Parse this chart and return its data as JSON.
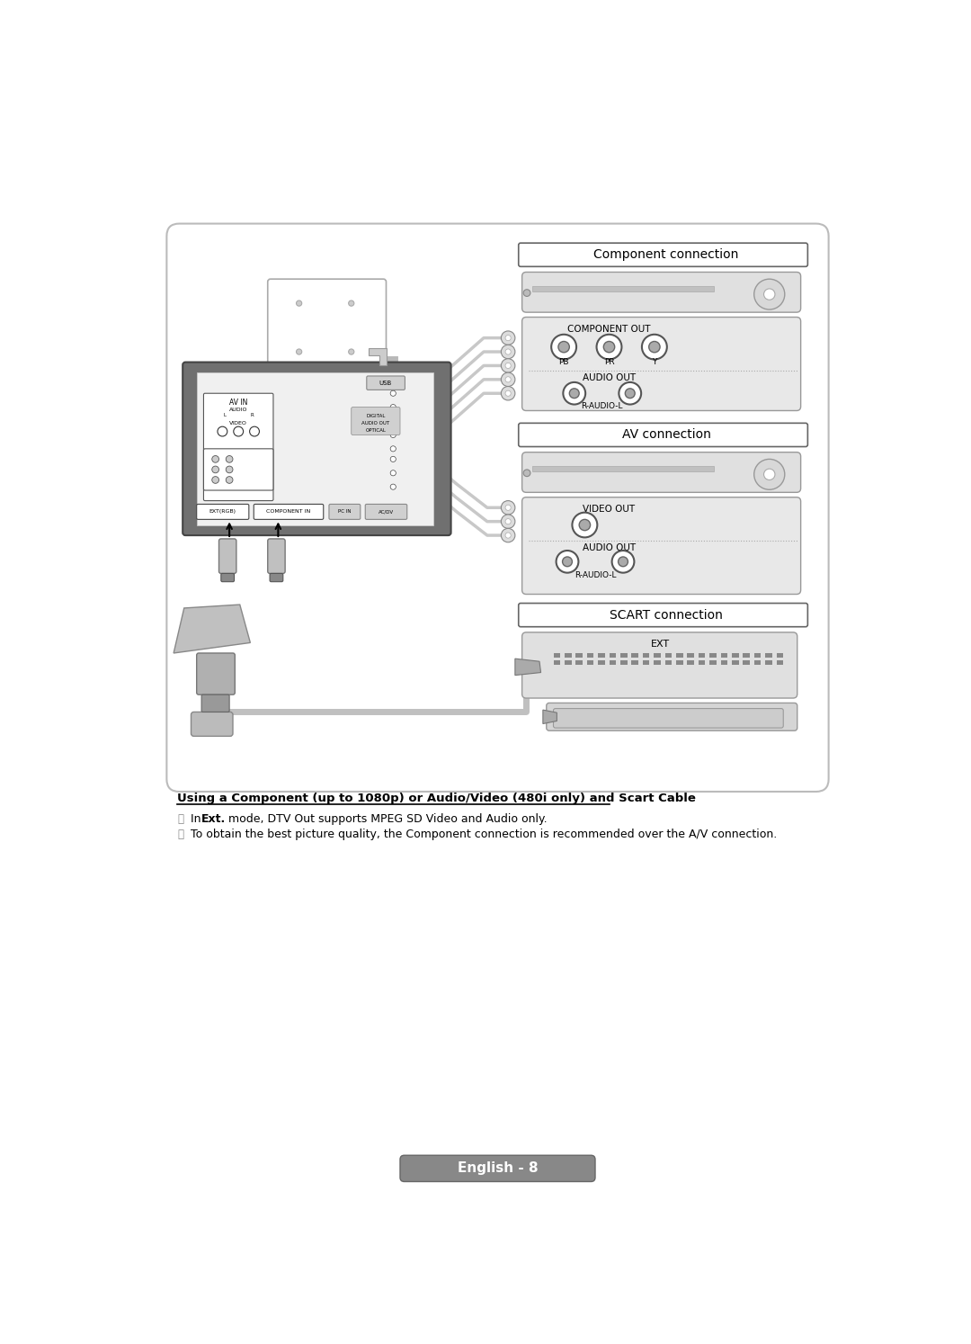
{
  "bg_color": "#ffffff",
  "section_title_component": "Component connection",
  "section_title_av": "AV connection",
  "section_title_scart": "SCART connection",
  "label_component_out": "COMPONENT OUT",
  "label_audio_out_1": "AUDIO OUT",
  "label_r_audio_l_1": "R-AUDIO-L",
  "label_pb": "PB",
  "label_pr": "PR",
  "label_y": "Y",
  "label_video_out": "VIDEO OUT",
  "label_audio_out_2": "AUDIO OUT",
  "label_r_audio_l_2": "R-AUDIO-L",
  "label_ext": "EXT",
  "heading": "Using a Component (up to 1080p) or Audio/Video (480i only) and Scart Cable",
  "note1_plain1": "In ",
  "note1_bold": "Ext.",
  "note1_plain2": " mode, DTV Out supports MPEG SD Video and Audio only.",
  "note2": "To obtain the best picture quality, the Component connection is recommended over the A/V connection.",
  "footer": "English - 8"
}
